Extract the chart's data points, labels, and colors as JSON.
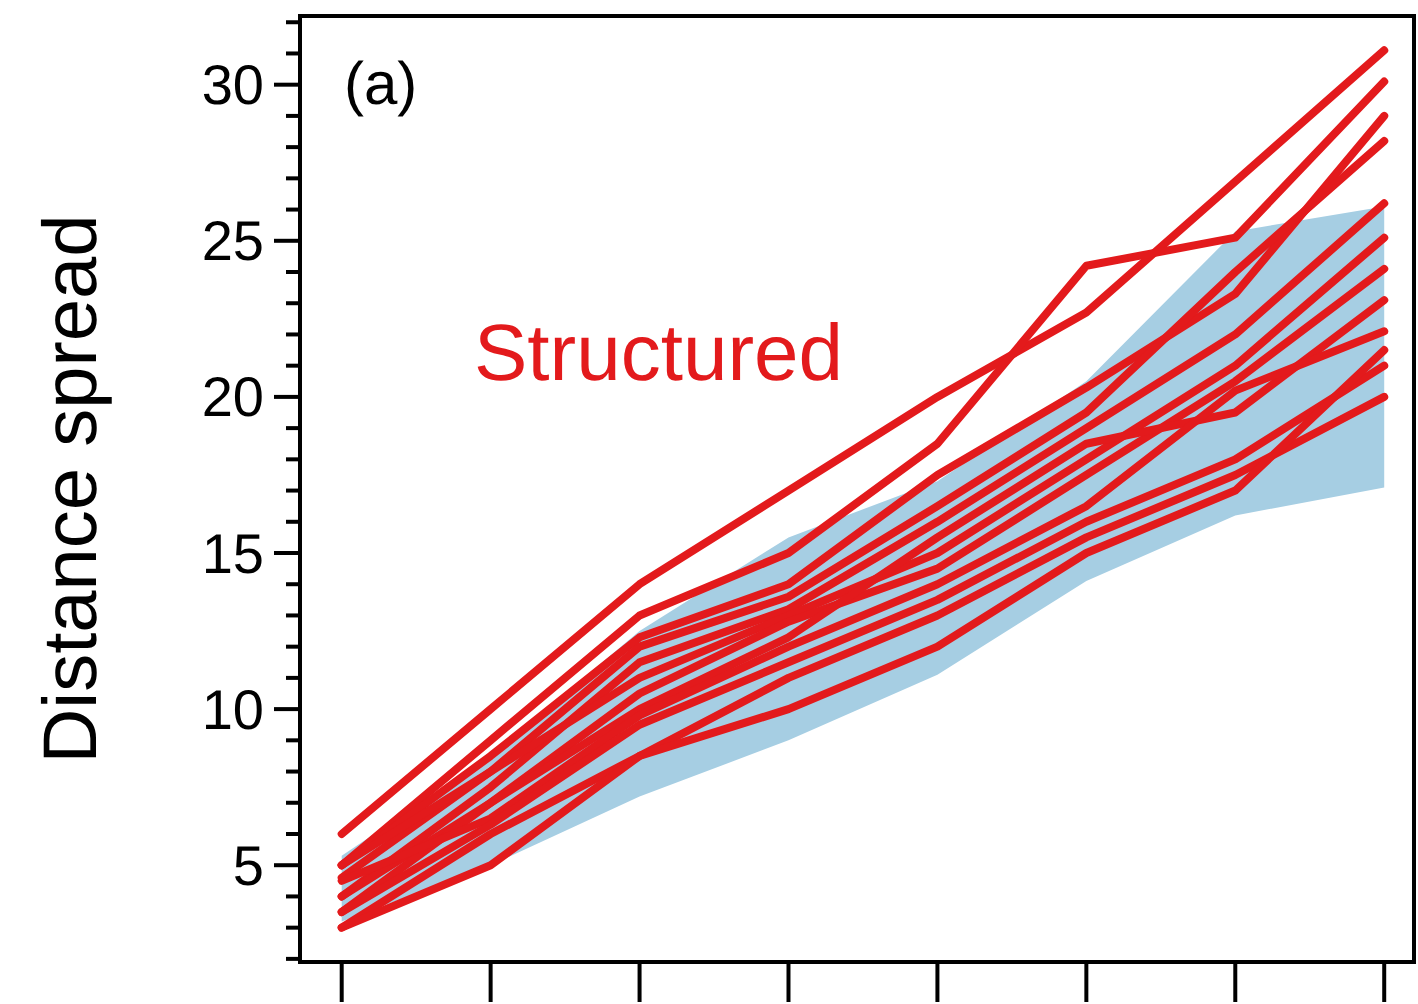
{
  "chart_data": {
    "type": "line",
    "ylabel": "Distance spread",
    "annotations": [
      "(a)",
      "Structured"
    ],
    "categories": [
      null,
      null,
      null,
      null,
      null,
      null,
      null,
      null
    ],
    "ylim": [
      1.9,
      32.2
    ],
    "yticks": [
      {
        "value": 2,
        "label": null
      },
      {
        "value": 3,
        "label": null
      },
      {
        "value": 4,
        "label": null
      },
      5,
      {
        "value": 6,
        "label": null
      },
      {
        "value": 7,
        "label": null
      },
      {
        "value": 8,
        "label": null
      },
      {
        "value": 9,
        "label": null
      },
      10,
      {
        "value": 11,
        "label": null
      },
      {
        "value": 12,
        "label": null
      },
      {
        "value": 13,
        "label": null
      },
      {
        "value": 14,
        "label": null
      },
      15,
      {
        "value": 16,
        "label": null
      },
      {
        "value": 17,
        "label": null
      },
      {
        "value": 18,
        "label": null
      },
      {
        "value": 19,
        "label": null
      },
      20,
      {
        "value": 21,
        "label": null
      },
      {
        "value": 22,
        "label": null
      },
      {
        "value": 23,
        "label": null
      },
      {
        "value": 24,
        "label": null
      },
      25,
      {
        "value": 26,
        "label": null
      },
      {
        "value": 27,
        "label": null
      },
      {
        "value": 28,
        "label": null
      },
      {
        "value": 29,
        "label": null
      },
      30,
      {
        "value": 31,
        "label": null
      },
      {
        "value": 32,
        "label": null
      }
    ],
    "tick_labels": "y",
    "grid": false,
    "marker": "none",
    "line_style": "solid",
    "series": [
      {
        "color": "#a6cee3",
        "values": [
          null,
          null,
          null,
          null,
          null,
          null,
          null,
          null
        ],
        "upper": [
          5.3,
          8.5,
          12.5,
          15.5,
          17.3,
          20.5,
          25.3,
          26.1
        ],
        "lower": [
          3.2,
          5.0,
          7.2,
          9.0,
          11.1,
          14.1,
          16.2,
          17.1
        ]
      },
      {
        "color": "#e31a1c",
        "values": [
          6,
          10,
          14,
          17,
          20,
          22.7,
          26.9,
          31.1
        ]
      },
      {
        "color": "#e31a1c",
        "values": [
          5,
          9,
          13,
          15,
          18.5,
          24.2,
          25.1,
          30.1
        ]
      },
      {
        "color": "#e31a1c",
        "values": [
          5,
          8.5,
          12.3,
          14,
          17.5,
          20.3,
          23.3,
          29.0
        ]
      },
      {
        "color": "#e31a1c",
        "values": [
          4.6,
          8,
          12,
          13.6,
          16.5,
          19.5,
          24,
          28.2
        ]
      },
      {
        "color": "#e31a1c",
        "values": [
          4,
          7.5,
          11.5,
          13.2,
          16,
          19,
          22,
          26.2
        ]
      },
      {
        "color": "#e31a1c",
        "values": [
          5,
          8,
          11,
          13,
          15,
          18,
          21,
          25.1
        ]
      },
      {
        "color": "#e31a1c",
        "values": [
          4,
          7,
          10.5,
          12.8,
          14.5,
          17.5,
          20.5,
          24.1
        ]
      },
      {
        "color": "#e31a1c",
        "values": [
          3.5,
          7,
          10,
          12.3,
          15.5,
          18.5,
          19.5,
          23.1
        ]
      },
      {
        "color": "#e31a1c",
        "values": [
          4.5,
          6.5,
          9.8,
          12,
          14,
          16.5,
          20.2,
          22.1
        ]
      },
      {
        "color": "#e31a1c",
        "values": [
          3.5,
          6.3,
          9.5,
          11.5,
          13.5,
          16,
          18,
          21
        ]
      },
      {
        "color": "#e31a1c",
        "values": [
          3,
          6,
          8.5,
          11,
          13,
          15.5,
          17.5,
          20.0
        ]
      },
      {
        "color": "#e31a1c",
        "values": [
          3,
          5,
          8.5,
          10,
          12,
          15,
          17,
          21.5
        ]
      }
    ]
  }
}
